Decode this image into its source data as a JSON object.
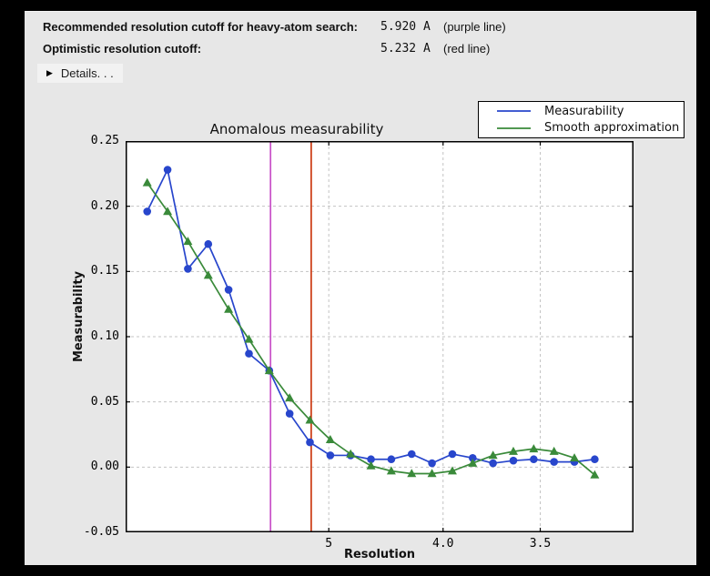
{
  "colors": {
    "panel_bg": "#e7e7e7",
    "plot_bg": "#ffffff",
    "frame": "#000000",
    "grid": "#c3c3c3",
    "measurability_blue": "#2846cc",
    "smooth_green": "#3a8a3a",
    "purple_line": "#c850c8",
    "red_line": "#cc3a12"
  },
  "header": {
    "rows": [
      {
        "label": "Recommended resolution cutoff for heavy-atom search:",
        "value": "5.920 A",
        "note": "(purple line)"
      },
      {
        "label": "Optimistic resolution cutoff:",
        "value": "5.232 A",
        "note": "(red line)"
      }
    ],
    "details": {
      "icon": "right-pointing-triangle",
      "label": "Details. . ."
    }
  },
  "chart_data": {
    "type": "line",
    "title": "Anomalous measurability",
    "xlabel": "Resolution",
    "ylabel": "Measurability",
    "x_axis": {
      "unit": "Angstrom",
      "scale": "linear in 1/d^2, resolution decreases left to right",
      "lim": [
        0.0,
        0.1
      ],
      "ticks": [
        {
          "d_star_sq": 0.04,
          "label": "5"
        },
        {
          "d_star_sq": 0.0625,
          "label": "4.0"
        },
        {
          "d_star_sq": 0.081633,
          "label": "3.5"
        }
      ]
    },
    "ylim": [
      -0.05,
      0.25
    ],
    "yticks": [
      {
        "value": 0.25,
        "label": "0.25"
      },
      {
        "value": 0.2,
        "label": "0.20"
      },
      {
        "value": 0.15,
        "label": "0.15"
      },
      {
        "value": 0.1,
        "label": "0.10"
      },
      {
        "value": 0.05,
        "label": "0.05"
      },
      {
        "value": 0.0,
        "label": "0.00"
      },
      {
        "value": -0.05,
        "label": "-0.05"
      }
    ],
    "series": [
      {
        "name": "Measurability",
        "color": "#2846cc",
        "marker": "circle",
        "x_dstar_sq": [
          0.00425,
          0.00826,
          0.01226,
          0.01627,
          0.02027,
          0.02428,
          0.02828,
          0.03229,
          0.03629,
          0.0403,
          0.0443,
          0.04831,
          0.05231,
          0.05632,
          0.06032,
          0.06433,
          0.06833,
          0.07234,
          0.07634,
          0.08035,
          0.08435,
          0.08836,
          0.09236
        ],
        "resolution_A": [
          15.34,
          11.01,
          9.03,
          7.84,
          7.02,
          6.42,
          5.95,
          5.57,
          5.25,
          4.98,
          4.75,
          4.55,
          4.37,
          4.21,
          4.07,
          3.94,
          3.83,
          3.72,
          3.62,
          3.53,
          3.44,
          3.36,
          3.29
        ],
        "values": [
          0.196,
          0.228,
          0.152,
          0.171,
          0.136,
          0.087,
          0.074,
          0.041,
          0.019,
          0.009,
          0.009,
          0.006,
          0.006,
          0.01,
          0.003,
          0.01,
          0.007,
          0.003,
          0.005,
          0.006,
          0.004,
          0.004,
          0.006
        ]
      },
      {
        "name": "Smooth approximation",
        "color": "#3a8a3a",
        "marker": "triangle",
        "x_dstar_sq": [
          0.00425,
          0.00826,
          0.01226,
          0.01627,
          0.02027,
          0.02428,
          0.02828,
          0.03229,
          0.03629,
          0.0403,
          0.0443,
          0.04831,
          0.05231,
          0.05632,
          0.06032,
          0.06433,
          0.06833,
          0.07234,
          0.07634,
          0.08035,
          0.08435,
          0.08836,
          0.09236
        ],
        "resolution_A": [
          15.34,
          11.01,
          9.03,
          7.84,
          7.02,
          6.42,
          5.95,
          5.57,
          5.25,
          4.98,
          4.75,
          4.55,
          4.37,
          4.21,
          4.07,
          3.94,
          3.83,
          3.72,
          3.62,
          3.53,
          3.44,
          3.36,
          3.29
        ],
        "values": [
          0.218,
          0.196,
          0.173,
          0.147,
          0.121,
          0.098,
          0.074,
          0.053,
          0.036,
          0.021,
          0.01,
          0.001,
          -0.003,
          -0.005,
          -0.005,
          -0.003,
          0.003,
          0.009,
          0.012,
          0.014,
          0.012,
          0.007,
          -0.006
        ]
      }
    ],
    "vlines": [
      {
        "name": "purple-cutoff-line",
        "resolution_A": 5.92,
        "d_star_sq": 0.02853,
        "color": "#c850c8"
      },
      {
        "name": "red-cutoff-line",
        "resolution_A": 5.232,
        "d_star_sq": 0.03654,
        "color": "#cc3a12"
      }
    ],
    "legend": {
      "position": "top-right",
      "entries": [
        "Measurability",
        "Smooth approximation"
      ]
    },
    "grid": true
  }
}
